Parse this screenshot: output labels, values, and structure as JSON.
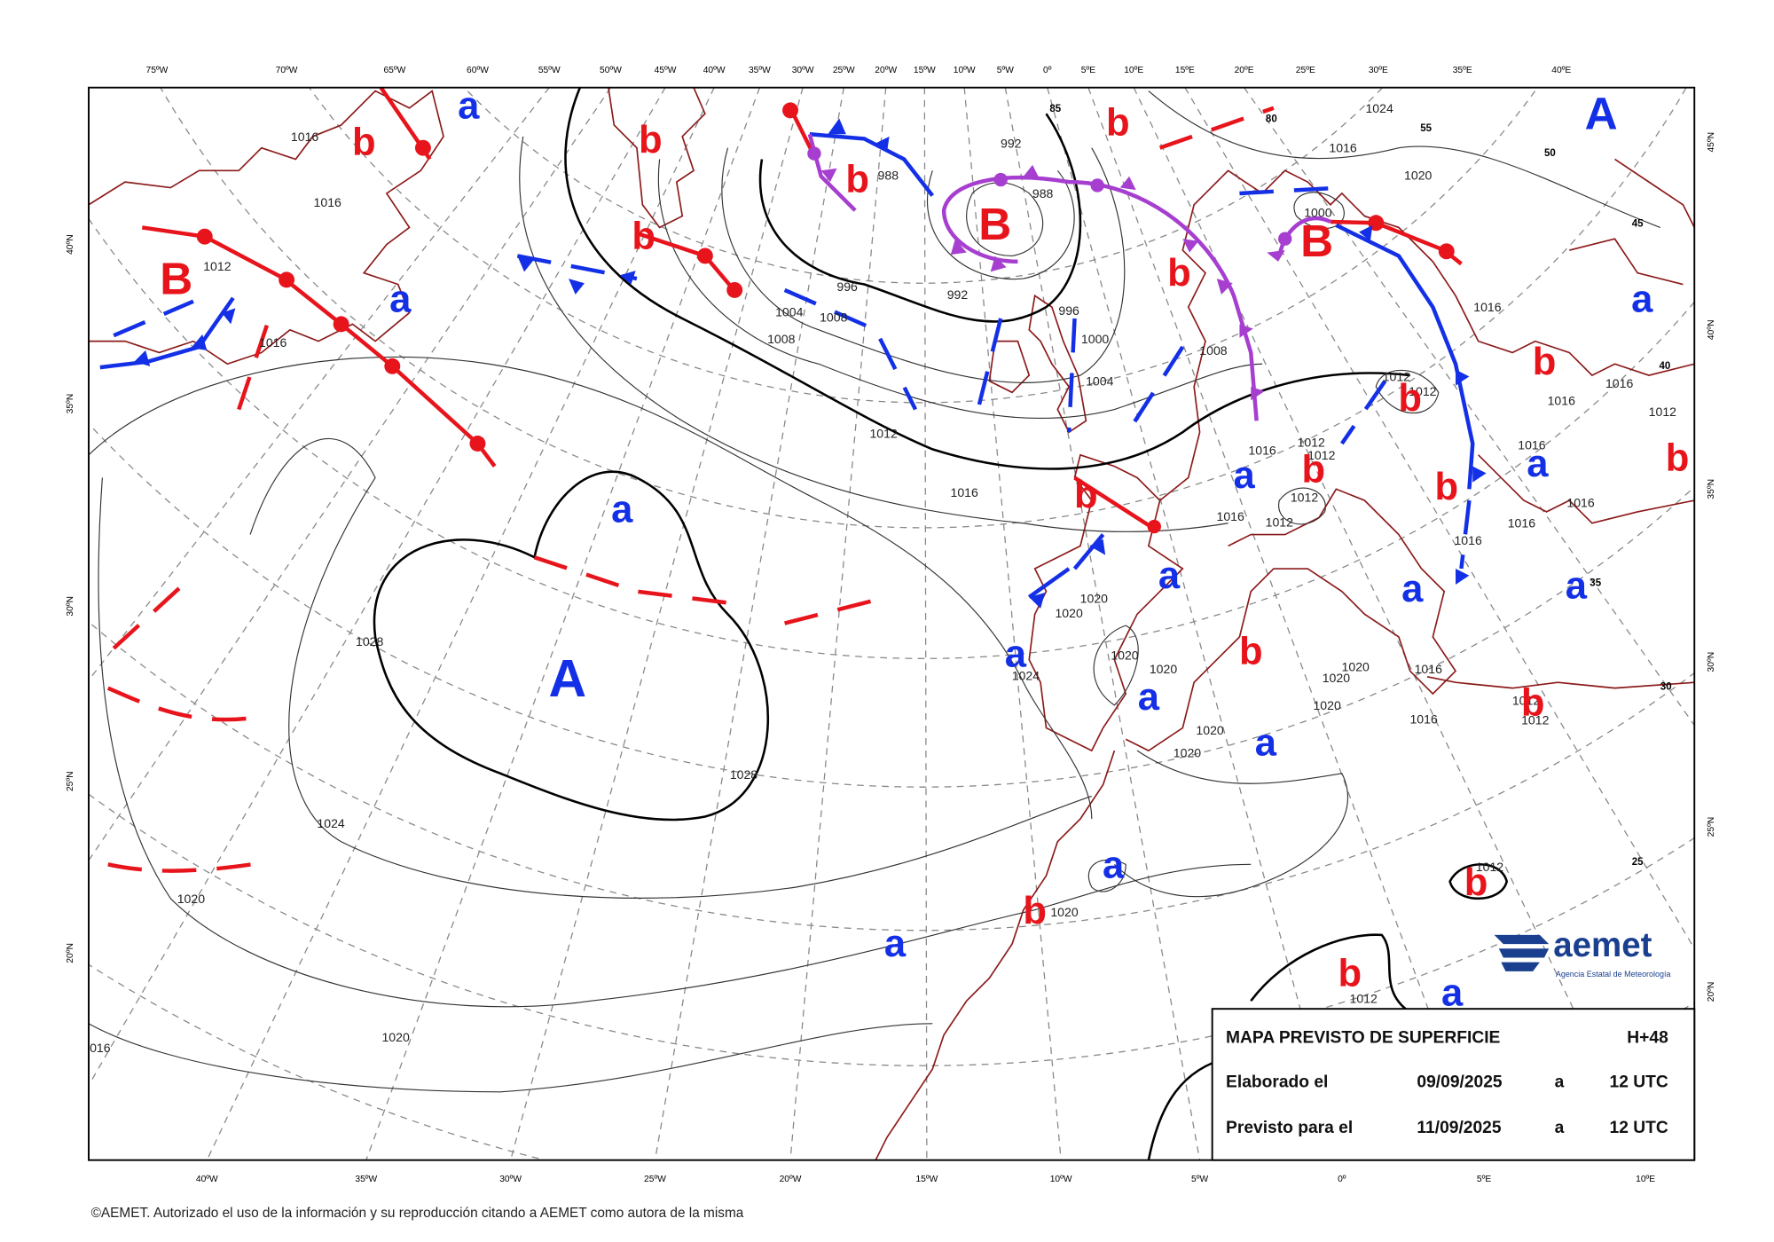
{
  "map": {
    "top_longitudes": [
      "75ºW",
      "70ºW",
      "65ºW",
      "60ºW",
      "55ºW",
      "50ºW",
      "45ºW",
      "40ºW",
      "35ºW",
      "30ºW",
      "25ºW",
      "20ºW",
      "15ºW",
      "10ºW",
      "5ºW",
      "0º",
      "5ºE",
      "10ºE",
      "15ºE",
      "20ºE",
      "25ºE",
      "30ºE",
      "35ºE",
      "40ºE"
    ],
    "bottom_longitudes": [
      "40ºW",
      "35ºW",
      "30ºW",
      "25ºW",
      "20ºW",
      "15ºW",
      "10ºW",
      "5ºW",
      "0º",
      "5ºE",
      "10ºE"
    ],
    "left_latitudes": [
      "40ºN",
      "35ºN",
      "30ºN",
      "25ºN",
      "20ºN"
    ],
    "right_latitudes": [
      "45ºN",
      "40ºN",
      "35ºN",
      "30ºN",
      "25ºN",
      "20ºN"
    ],
    "grid_labels": [
      "85",
      "80",
      "55",
      "50",
      "45",
      "40",
      "35",
      "30",
      "25"
    ],
    "pressure_centers": [
      "A",
      "A",
      "B",
      "B",
      "B",
      "b",
      "b",
      "b",
      "b",
      "b",
      "b",
      "b",
      "b",
      "b",
      "b",
      "b",
      "b",
      "b",
      "b",
      "b",
      "b",
      "b",
      "a",
      "a",
      "a",
      "a",
      "a",
      "a",
      "a",
      "a",
      "a",
      "a",
      "a",
      "a",
      "a",
      "a",
      "a"
    ],
    "isobar_labels": [
      "1016",
      "1016",
      "1012",
      "1016",
      "1028",
      "1028",
      "1024",
      "1020",
      "1020",
      "016",
      "992",
      "988",
      "988",
      "996",
      "992",
      "1004",
      "1008",
      "1008",
      "996",
      "1000",
      "1004",
      "1008",
      "1012",
      "1016",
      "1016",
      "1012",
      "1012",
      "1012",
      "1016",
      "1012",
      "1020",
      "1020",
      "1020",
      "1020",
      "1024",
      "1020",
      "1020",
      "1016",
      "1020",
      "1020",
      "1016",
      "1020",
      "1012",
      "1012",
      "1012",
      "1020",
      "1012",
      "1016",
      "1016",
      "1016",
      "1016",
      "1016",
      "1020",
      "1024",
      "1012",
      "1012",
      "1012",
      "1016",
      "1016",
      "1016",
      "1000"
    ]
  },
  "info_box": {
    "title": "MAPA PREVISTO DE SUPERFICIE",
    "lead": "H+48",
    "rows": [
      [
        "Elaborado el",
        "09/09/2025",
        "a",
        "12 UTC"
      ],
      [
        "Previsto para el",
        "11/09/2025",
        "a",
        "12 UTC"
      ]
    ]
  },
  "logo": {
    "name": "aemet",
    "subtitle": "Agencia Estatal de Meteorología"
  },
  "footer": "©AEMET. Autorizado el uso de la información y su reproducción citando a AEMET como autora de la misma"
}
